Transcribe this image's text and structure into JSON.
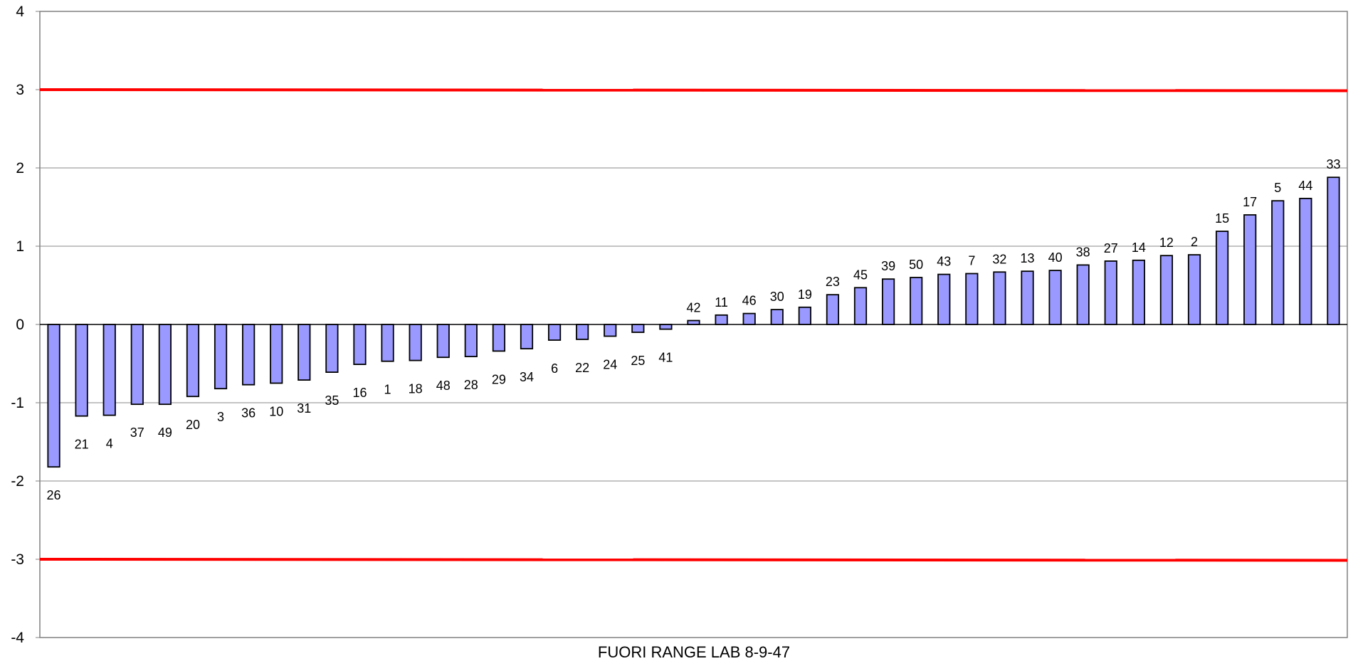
{
  "chart_data": {
    "type": "bar",
    "title": "FUORI RANGE LAB 8-9-47",
    "xlabel": "",
    "ylabel": "",
    "ylim": [
      -4,
      4
    ],
    "yticks": [
      4,
      3,
      2,
      1,
      0,
      -1,
      -2,
      -3,
      -4
    ],
    "grid": true,
    "legend": "none",
    "categories": [
      "26",
      "21",
      "4",
      "37",
      "49",
      "20",
      "3",
      "36",
      "10",
      "31",
      "35",
      "16",
      "1",
      "18",
      "48",
      "28",
      "29",
      "34",
      "6",
      "22",
      "24",
      "25",
      "41",
      "42",
      "11",
      "46",
      "30",
      "19",
      "23",
      "45",
      "39",
      "50",
      "43",
      "7",
      "32",
      "13",
      "40",
      "38",
      "27",
      "14",
      "12",
      "2",
      "15",
      "17",
      "5",
      "44",
      "33"
    ],
    "values": [
      -1.82,
      -1.17,
      -1.16,
      -1.02,
      -1.02,
      -0.92,
      -0.82,
      -0.77,
      -0.75,
      -0.71,
      -0.61,
      -0.51,
      -0.47,
      -0.46,
      -0.42,
      -0.41,
      -0.34,
      -0.31,
      -0.2,
      -0.19,
      -0.15,
      -0.1,
      -0.06,
      0.05,
      0.12,
      0.14,
      0.19,
      0.22,
      0.38,
      0.47,
      0.58,
      0.6,
      0.64,
      0.65,
      0.67,
      0.68,
      0.69,
      0.76,
      0.81,
      0.82,
      0.88,
      0.89,
      1.19,
      1.4,
      1.58,
      1.61,
      1.88
    ],
    "reference_lines": [
      3,
      -3
    ],
    "colors": {
      "bar_fill": "#9999ff",
      "bar_stroke": "#000000",
      "reference_line": "#ff0000",
      "grid": "#888888",
      "axis": "#808080"
    }
  }
}
